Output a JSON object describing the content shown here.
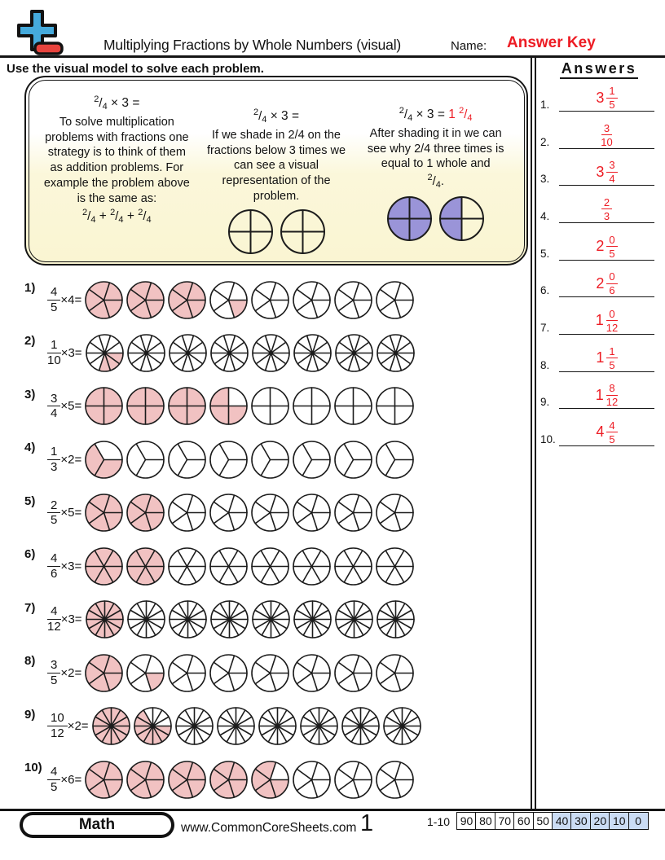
{
  "header": {
    "title": "Multiplying Fractions by Whole Numbers (visual)",
    "name_label": "Name:",
    "answer_key_label": "Answer Key",
    "instruction": "Use the visual model to solve each problem."
  },
  "logo": {
    "plus_color": "#45AADC",
    "minus_color": "#E8443E"
  },
  "example_box": {
    "shade_color": "#9A94D8",
    "columns": [
      {
        "equation": {
          "num": "2",
          "den": "4",
          "op": "× 3 ="
        },
        "text": "To solve multiplication problems with fractions one strategy is to think of them as addition problems. For example the problem above is the same as:",
        "sum": [
          {
            "num": "2",
            "den": "4"
          },
          {
            "num": "2",
            "den": "4"
          },
          {
            "num": "2",
            "den": "4"
          }
        ]
      },
      {
        "equation": {
          "num": "2",
          "den": "4",
          "op": "× 3 ="
        },
        "text": "If we shade in 2/4 on the fractions below 3 times we can see a visual representation of the problem.",
        "circles": [
          {
            "slices": 4,
            "shaded": 0
          },
          {
            "slices": 4,
            "shaded": 0
          }
        ]
      },
      {
        "equation": {
          "num": "2",
          "den": "4",
          "op": "× 3 =",
          "result": {
            "whole": "1",
            "num": "2",
            "den": "4"
          }
        },
        "text": "After shading it in we can see why 2/4 three times is equal to 1 whole and",
        "tail_fraction": {
          "num": "2",
          "den": "4",
          "suffix": "."
        },
        "circles": [
          {
            "slices": 4,
            "shaded": 4,
            "shift": 0
          },
          {
            "slices": 4,
            "shaded": 2,
            "shift": 1
          }
        ]
      }
    ]
  },
  "problems": [
    {
      "label": "1)",
      "num": "4",
      "den": "5",
      "multiplier": "4",
      "circle_count": 8,
      "slices": 5,
      "shaded_total": 16
    },
    {
      "label": "2)",
      "num": "1",
      "den": "10",
      "multiplier": "3",
      "circle_count": 8,
      "slices": 10,
      "shaded_total": 3
    },
    {
      "label": "3)",
      "num": "3",
      "den": "4",
      "multiplier": "5",
      "circle_count": 8,
      "slices": 4,
      "shaded_total": 15
    },
    {
      "label": "4)",
      "num": "1",
      "den": "3",
      "multiplier": "2",
      "circle_count": 8,
      "slices": 3,
      "shaded_total": 2
    },
    {
      "label": "5)",
      "num": "2",
      "den": "5",
      "multiplier": "5",
      "circle_count": 8,
      "slices": 5,
      "shaded_total": 10
    },
    {
      "label": "6)",
      "num": "4",
      "den": "6",
      "multiplier": "3",
      "circle_count": 8,
      "slices": 6,
      "shaded_total": 12
    },
    {
      "label": "7)",
      "num": "4",
      "den": "12",
      "multiplier": "3",
      "circle_count": 8,
      "slices": 12,
      "shaded_total": 12
    },
    {
      "label": "8)",
      "num": "3",
      "den": "5",
      "multiplier": "2",
      "circle_count": 8,
      "slices": 5,
      "shaded_total": 6
    },
    {
      "label": "9)",
      "num": "10",
      "den": "12",
      "multiplier": "2",
      "circle_count": 8,
      "slices": 12,
      "shaded_total": 20
    },
    {
      "label": "10)",
      "num": "4",
      "den": "5",
      "multiplier": "6",
      "circle_count": 8,
      "slices": 5,
      "shaded_total": 24
    }
  ],
  "answers_panel": {
    "title": "Answers",
    "items": [
      {
        "n": "1.",
        "whole": "3",
        "num": "1",
        "den": "5"
      },
      {
        "n": "2.",
        "whole": "",
        "num": "3",
        "den": "10"
      },
      {
        "n": "3.",
        "whole": "3",
        "num": "3",
        "den": "4"
      },
      {
        "n": "4.",
        "whole": "",
        "num": "2",
        "den": "3"
      },
      {
        "n": "5.",
        "whole": "2",
        "num": "0",
        "den": "5"
      },
      {
        "n": "6.",
        "whole": "2",
        "num": "0",
        "den": "6"
      },
      {
        "n": "7.",
        "whole": "1",
        "num": "0",
        "den": "12"
      },
      {
        "n": "8.",
        "whole": "1",
        "num": "1",
        "den": "5"
      },
      {
        "n": "9.",
        "whole": "1",
        "num": "8",
        "den": "12"
      },
      {
        "n": "10.",
        "whole": "4",
        "num": "4",
        "den": "5"
      }
    ]
  },
  "footer": {
    "subject": "Math",
    "website": "www.CommonCoreSheets.com",
    "page_number": "1",
    "score_label": "1-10",
    "score_cells": [
      "90",
      "80",
      "70",
      "60",
      "50",
      "40",
      "30",
      "20",
      "10",
      "0"
    ],
    "score_highlight_from": 5
  },
  "colors": {
    "shade_pink": "#F1C2C2",
    "answer_red": "#ED1C24",
    "score_highlight": "#CBDCF4"
  }
}
